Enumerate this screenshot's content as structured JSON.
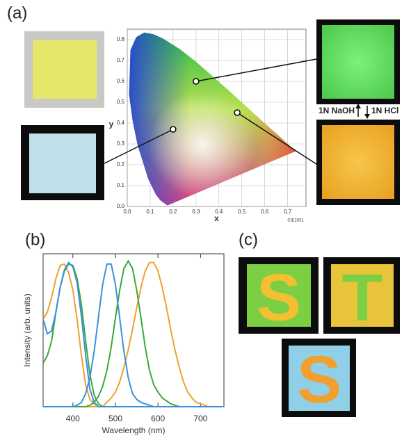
{
  "panel_labels": [
    "(a)",
    "(b)",
    "(c)"
  ],
  "annotations": [
    "1N NaOH",
    "1N HCl"
  ],
  "panel_c_letters": [
    "S",
    "T",
    "S"
  ],
  "chart_data": [
    {
      "type": "scatter",
      "x_label": "x",
      "y_label": "y",
      "footnote": "CIE1931",
      "x": [
        0.3,
        0.2,
        0.48
      ],
      "values": [
        0.6,
        0.37,
        0.45
      ],
      "color": "#000000",
      "xlim": [
        0,
        0.78
      ],
      "ylim": [
        0,
        0.85
      ],
      "grid": true,
      "xticks": [
        {
          "value": 0,
          "label": "0.0"
        },
        {
          "value": 0.1,
          "label": "0.1"
        },
        {
          "value": 0.2,
          "label": "0.2"
        },
        {
          "value": 0.3,
          "label": "0.3"
        },
        {
          "value": 0.4,
          "label": "0.4"
        },
        {
          "value": 0.5,
          "label": "0.5"
        },
        {
          "value": 0.6,
          "label": "0.6"
        },
        {
          "value": 0.7,
          "label": "0.7"
        }
      ],
      "yticks": [
        {
          "value": 0,
          "label": "0.0"
        },
        {
          "value": 0.1,
          "label": "0.1"
        },
        {
          "value": 0.2,
          "label": "0.2"
        },
        {
          "value": 0.3,
          "label": "0.3"
        },
        {
          "value": 0.4,
          "label": "0.4"
        },
        {
          "value": 0.5,
          "label": "0.5"
        },
        {
          "value": 0.6,
          "label": "0.6"
        },
        {
          "value": 0.7,
          "label": "0.7"
        },
        {
          "value": 0.8,
          "label": "0.8"
        }
      ]
    },
    {
      "type": "line",
      "x_label": "Wavelength (nm)",
      "y_label": "Intensity (arb. units)",
      "xlim": [
        330,
        755
      ],
      "ylim": [
        0,
        1.05
      ],
      "xticks": [
        400,
        500,
        600,
        700
      ],
      "x": [
        330,
        340,
        350,
        360,
        370,
        380,
        390,
        400,
        410,
        420,
        430,
        440,
        450,
        460,
        470,
        480,
        490,
        500,
        510,
        520,
        530,
        540,
        550,
        560,
        570,
        580,
        590,
        600,
        610,
        620,
        630,
        640,
        650,
        660,
        670,
        680,
        690,
        700,
        710,
        720,
        730,
        740,
        750
      ],
      "series": [
        {
          "color": "#f0a030",
          "values": [
            0.6,
            0.65,
            0.75,
            0.88,
            0.97,
            0.98,
            0.92,
            0.8,
            0.6,
            0.35,
            0.15,
            0.05,
            0.02,
            0,
            0,
            0,
            0,
            0,
            0,
            0,
            0,
            0,
            0,
            0,
            0,
            0,
            0,
            0,
            0,
            0,
            0,
            0,
            0,
            0,
            0,
            0,
            0,
            0,
            0,
            0,
            0,
            0,
            0
          ]
        },
        {
          "color": "#f0a030",
          "values": [
            0,
            0,
            0,
            0,
            0,
            0,
            0,
            0,
            0,
            0,
            0,
            0,
            0,
            0,
            0,
            0.03,
            0.06,
            0.1,
            0.17,
            0.27,
            0.39,
            0.53,
            0.68,
            0.82,
            0.93,
            0.99,
            0.99,
            0.93,
            0.82,
            0.68,
            0.53,
            0.39,
            0.27,
            0.17,
            0.1,
            0.06,
            0.03,
            0.02,
            0.01,
            0,
            0,
            0,
            0
          ]
        },
        {
          "color": "#3aa83a",
          "values": [
            0.3,
            0.35,
            0.45,
            0.65,
            0.82,
            0.93,
            0.98,
            0.97,
            0.88,
            0.7,
            0.45,
            0.22,
            0.08,
            0.02,
            0,
            0,
            0,
            0,
            0,
            0,
            0,
            0,
            0,
            0,
            0,
            0,
            0,
            0,
            0,
            0,
            0,
            0,
            0,
            0,
            0,
            0,
            0,
            0,
            0,
            0,
            0,
            0,
            0
          ]
        },
        {
          "color": "#3aa83a",
          "values": [
            0,
            0,
            0,
            0,
            0,
            0,
            0,
            0,
            0,
            0,
            0,
            0.01,
            0.03,
            0.07,
            0.14,
            0.25,
            0.41,
            0.61,
            0.8,
            0.95,
            1,
            0.95,
            0.8,
            0.61,
            0.41,
            0.25,
            0.15,
            0.1,
            0.06,
            0.04,
            0.02,
            0.01,
            0,
            0,
            0,
            0,
            0,
            0,
            0,
            0,
            0,
            0,
            0
          ]
        },
        {
          "color": "#3a90d8",
          "values": [
            0.6,
            0.5,
            0.52,
            0.65,
            0.82,
            0.94,
            0.99,
            0.96,
            0.85,
            0.62,
            0.35,
            0.12,
            0.03,
            0,
            0,
            0,
            0,
            0,
            0,
            0,
            0,
            0,
            0,
            0,
            0,
            0,
            0,
            0,
            0,
            0,
            0,
            0,
            0,
            0,
            0,
            0,
            0,
            0,
            0,
            0,
            0,
            0,
            0
          ]
        },
        {
          "color": "#3a90d8",
          "values": [
            0,
            0,
            0,
            0,
            0,
            0,
            0,
            0,
            0.01,
            0.03,
            0.09,
            0.2,
            0.38,
            0.61,
            0.84,
            0.98,
            0.98,
            0.84,
            0.61,
            0.38,
            0.2,
            0.09,
            0.05,
            0.03,
            0.02,
            0.01,
            0,
            0,
            0,
            0,
            0,
            0,
            0,
            0,
            0,
            0,
            0,
            0,
            0,
            0,
            0,
            0,
            0
          ]
        }
      ]
    }
  ]
}
